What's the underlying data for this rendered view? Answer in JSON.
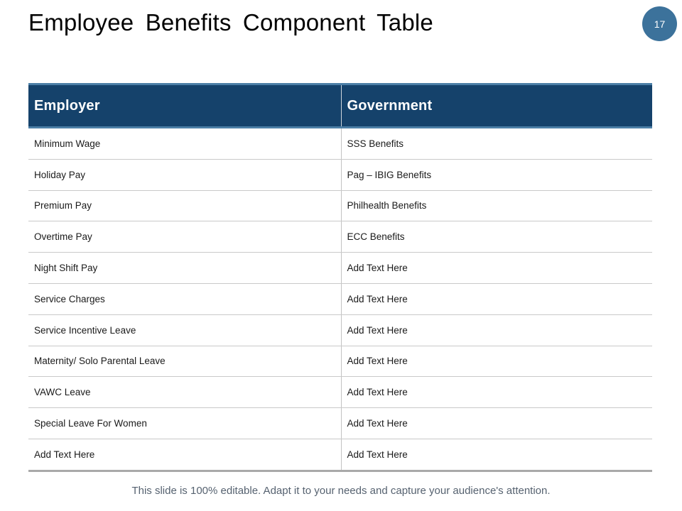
{
  "slide": {
    "title": "Employee Benefits Component Table",
    "page_number": "17",
    "footer": "This slide is 100% editable. Adapt it to your needs and capture your audience's attention."
  },
  "table": {
    "headers": [
      "Employer",
      "Government"
    ],
    "rows": [
      {
        "employer": "Minimum Wage",
        "government": "SSS Benefits"
      },
      {
        "employer": "Holiday Pay",
        "government": "Pag – IBIG Benefits"
      },
      {
        "employer": "Premium Pay",
        "government": "Philhealth Benefits"
      },
      {
        "employer": "Overtime Pay",
        "government": "ECC Benefits"
      },
      {
        "employer": "Night Shift Pay",
        "government": "Add Text Here"
      },
      {
        "employer": "Service Charges",
        "government": "Add Text Here"
      },
      {
        "employer": "Service Incentive Leave",
        "government": "Add Text Here"
      },
      {
        "employer": "Maternity/ Solo Parental Leave",
        "government": "Add Text Here"
      },
      {
        "employer": "VAWC Leave",
        "government": "Add Text Here"
      },
      {
        "employer": "Special Leave For Women",
        "government": "Add Text Here"
      },
      {
        "employer": "Add Text Here",
        "government": "Add Text Here"
      }
    ]
  },
  "colors": {
    "header_bg": "#15426B",
    "header_accent": "#4C7FA6",
    "page_circle": "#3C729B",
    "row_border": "#C9C9C9",
    "table_bottom_border": "#A9A9A9",
    "footer_text": "#566270"
  }
}
